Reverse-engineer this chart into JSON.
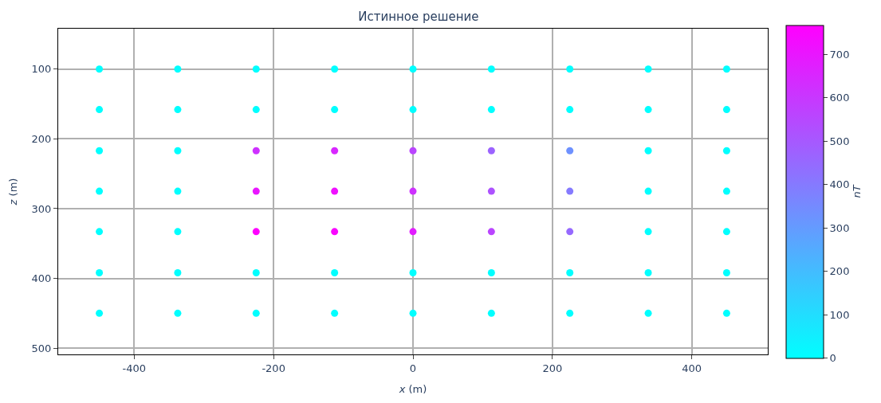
{
  "chart_data": {
    "type": "scatter",
    "title": "Истинное решение",
    "xlabel": "x (m)",
    "ylabel": "z (m)",
    "clabel": "nT",
    "x": [
      -450,
      -337.5,
      -225,
      -112.5,
      0,
      112.5,
      225,
      337.5,
      450,
      -450,
      -337.5,
      -225,
      -112.5,
      0,
      112.5,
      225,
      337.5,
      450,
      -450,
      -337.5,
      -225,
      -112.5,
      0,
      112.5,
      225,
      337.5,
      450,
      -450,
      -337.5,
      -225,
      -112.5,
      0,
      112.5,
      225,
      337.5,
      450,
      -450,
      -337.5,
      -225,
      -112.5,
      0,
      112.5,
      225,
      337.5,
      450,
      -450,
      -337.5,
      -225,
      -112.5,
      0,
      112.5,
      225,
      337.5,
      450,
      -450,
      -337.5,
      -225,
      -112.5,
      0,
      112.5,
      225,
      337.5,
      450
    ],
    "values": [
      100,
      100,
      100,
      100,
      100,
      100,
      100,
      100,
      100,
      158,
      158,
      158,
      158,
      158,
      158,
      158,
      158,
      158,
      217,
      217,
      217,
      217,
      217,
      217,
      217,
      217,
      217,
      275,
      275,
      275,
      275,
      275,
      275,
      275,
      275,
      275,
      333,
      333,
      333,
      333,
      333,
      333,
      333,
      333,
      333,
      392,
      392,
      392,
      392,
      392,
      392,
      392,
      392,
      392,
      450,
      450,
      450,
      450,
      450,
      450,
      450,
      450,
      450
    ],
    "cvalues": [
      0,
      0,
      0,
      0,
      0,
      0,
      0,
      0,
      0,
      0,
      0,
      0,
      0,
      0,
      0,
      0,
      0,
      0,
      0,
      0,
      620,
      650,
      560,
      470,
      330,
      0,
      0,
      0,
      0,
      700,
      720,
      620,
      520,
      400,
      0,
      0,
      0,
      0,
      765,
      750,
      680,
      560,
      450,
      0,
      0,
      0,
      0,
      0,
      0,
      0,
      0,
      0,
      0,
      0,
      0,
      0,
      0,
      0,
      0,
      0,
      0,
      0,
      0
    ],
    "xlim": [
      -509,
      509
    ],
    "ylim": [
      509,
      42
    ],
    "xticks": [
      -400,
      -200,
      0,
      200,
      400
    ],
    "yticks": [
      100,
      200,
      300,
      400,
      500
    ],
    "clim": [
      0,
      767
    ],
    "cticks": [
      0,
      100,
      200,
      300,
      400,
      500,
      600,
      700
    ],
    "grid": true
  }
}
